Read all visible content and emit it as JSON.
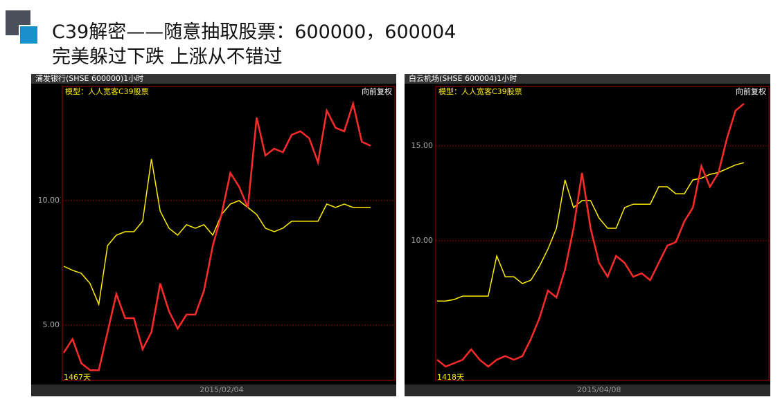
{
  "slide_title": [
    "C39解密——随意抽取股票：600000，600004",
    "完美躲过下跌 上涨从不错过"
  ],
  "chart_data": [
    {
      "type": "line",
      "title": "浦发银行(SHSE 600000)1小时",
      "subtitle": "模型：人人宽客C39股票",
      "annotation": "向前复权",
      "count_label": "1467天",
      "categories": [
        null,
        null,
        null,
        null,
        null,
        null,
        null,
        null,
        null,
        null,
        null,
        null,
        null,
        null,
        null,
        null,
        null,
        null,
        "2015/02/04",
        null,
        null,
        null,
        null,
        null,
        null,
        null,
        null,
        null,
        null,
        null,
        null,
        null,
        null,
        null,
        null,
        null
      ],
      "series": [
        {
          "color": "#ffee00",
          "values": [
            7.36,
            7.2,
            7.08,
            6.67,
            5.83,
            8.19,
            8.61,
            8.75,
            8.75,
            9.17,
            11.67,
            9.58,
            8.89,
            8.61,
            9.03,
            8.89,
            9.03,
            8.61,
            9.44,
            9.86,
            10,
            9.72,
            9.44,
            8.89,
            8.75,
            8.89,
            9.17,
            9.17,
            9.17,
            9.17,
            9.86,
            9.72,
            9.86,
            9.72,
            9.72,
            9.72
          ]
        },
        {
          "color": "#ff2a2a",
          "values": [
            3.89,
            4.44,
            3.47,
            3.19,
            3.19,
            4.72,
            6.25,
            5.28,
            5.28,
            4.03,
            4.72,
            6.67,
            5.56,
            4.86,
            5.42,
            5.42,
            6.39,
            8.19,
            9.44,
            11.11,
            10.56,
            9.72,
            13.33,
            11.81,
            12.08,
            11.94,
            12.64,
            12.78,
            12.5,
            11.53,
            13.61,
            12.92,
            12.78,
            13.89,
            12.36,
            12.2
          ]
        }
      ],
      "ylim": [
        2.78,
        14.58
      ],
      "yticks": [
        {
          "value": 5,
          "label": "5.00"
        },
        {
          "value": 10,
          "label": "10.00"
        }
      ],
      "grid": true
    },
    {
      "type": "line",
      "title": "白云机场(SHSE 600004)1小时",
      "subtitle": "模型：人人宽客C39股票",
      "annotation": "向前复权",
      "count_label": "1418天",
      "categories": [
        null,
        null,
        null,
        null,
        null,
        null,
        null,
        null,
        null,
        null,
        null,
        null,
        null,
        null,
        null,
        null,
        null,
        null,
        null,
        "2015/04/08",
        null,
        null,
        null,
        null,
        null,
        null,
        null,
        null,
        null,
        null,
        null,
        null,
        null,
        null,
        null,
        null,
        null
      ],
      "series": [
        {
          "color": "#ffee00",
          "values": [
            6.82,
            6.82,
            6.9,
            7.08,
            7.08,
            7.08,
            7.08,
            9.2,
            8.1,
            8.1,
            7.74,
            7.92,
            8.65,
            9.56,
            10.66,
            13.21,
            11.75,
            12.12,
            12.12,
            11.2,
            10.66,
            10.66,
            11.75,
            11.93,
            11.93,
            11.93,
            12.85,
            12.85,
            12.48,
            12.48,
            13.21,
            13.3,
            13.5,
            13.6,
            13.8,
            14.0,
            14.12
          ]
        },
        {
          "color": "#ff2a2a",
          "values": [
            3.72,
            3.36,
            3.54,
            3.72,
            4.27,
            3.72,
            3.36,
            3.72,
            3.91,
            3.72,
            3.91,
            4.82,
            5.91,
            7.37,
            7.01,
            8.47,
            10.66,
            13.58,
            10.66,
            8.83,
            8.1,
            9.2,
            8.83,
            8.1,
            8.28,
            7.92,
            8.83,
            9.74,
            9.93,
            11.02,
            11.75,
            13.94,
            12.85,
            13.58,
            15.4,
            16.86,
            17.23
          ]
        }
      ],
      "ylim": [
        2.63,
        18.14
      ],
      "yticks": [
        {
          "value": 10,
          "label": "10.00"
        },
        {
          "value": 15,
          "label": "15.00"
        }
      ],
      "grid": true
    }
  ]
}
